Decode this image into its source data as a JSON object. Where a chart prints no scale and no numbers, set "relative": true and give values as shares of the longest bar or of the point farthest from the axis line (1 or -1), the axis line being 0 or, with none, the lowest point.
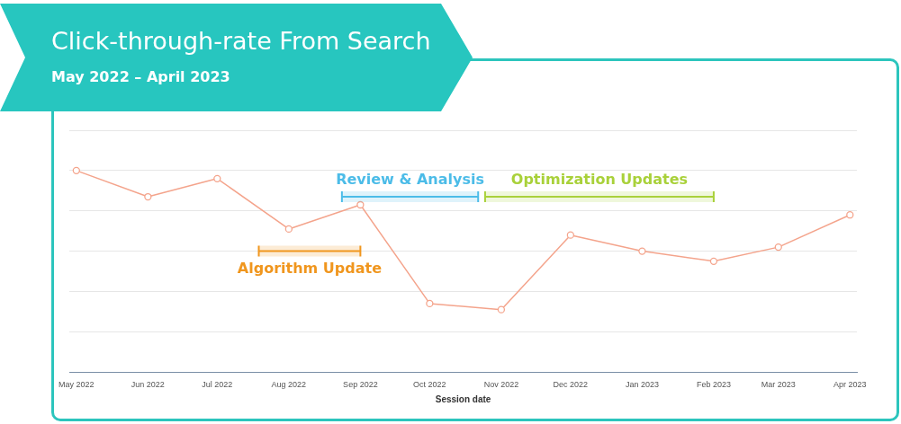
{
  "chart_data": {
    "type": "line",
    "title": "Click-through-rate From Search",
    "subtitle": "May 2022 – April 2023",
    "xlabel": "Session date",
    "relative": true,
    "grid": "y",
    "marker": "circle",
    "line_style": "solid",
    "x": [
      "2022-05",
      "2022-06",
      "2022-07",
      "2022-08",
      "2022-09",
      "2022-10",
      "2022-11",
      "2022-12",
      "2023-01",
      "2023-02",
      "2023-03",
      "2023-04"
    ],
    "xlim": [
      "2022-04-28",
      "2023-04-04"
    ],
    "xticks": [
      {
        "value": "2022-05",
        "label": "May 2022"
      },
      {
        "value": "2022-06",
        "label": "Jun 2022"
      },
      {
        "value": "2022-07",
        "label": "Jul 2022"
      },
      {
        "value": "2022-08",
        "label": "Aug 2022"
      },
      {
        "value": "2022-09",
        "label": "Sep 2022"
      },
      {
        "value": "2022-10",
        "label": "Oct 2022"
      },
      {
        "value": "2022-11",
        "label": "Nov 2022"
      },
      {
        "value": "2022-12",
        "label": "Dec 2022"
      },
      {
        "value": "2023-01",
        "label": "Jan 2023"
      },
      {
        "value": "2023-02",
        "label": "Feb 2023"
      },
      {
        "value": "2023-03",
        "label": "Mar 2023"
      },
      {
        "value": "2023-04",
        "label": "Apr 2023"
      }
    ],
    "series": [
      {
        "color": "#f4a48c",
        "values": [
          1,
          0.87,
          0.96,
          0.71,
          0.83,
          0.34,
          0.31,
          0.68,
          0.6,
          0.55,
          0.62,
          0.78
        ]
      }
    ],
    "bands": [
      {
        "axis": "x",
        "from": "2022-07-19",
        "to": "2022-09-01",
        "label": "Algorithm Update",
        "color": "#f0961e"
      },
      {
        "axis": "x",
        "from": "2022-08-24",
        "to": "2022-10-22",
        "label": "Review & Analysis",
        "color": "#4cbce8"
      },
      {
        "axis": "x",
        "from": "2022-10-25",
        "to": "2023-02-01",
        "label": "Optimization Updates",
        "color": "#a9d13a"
      }
    ]
  }
}
